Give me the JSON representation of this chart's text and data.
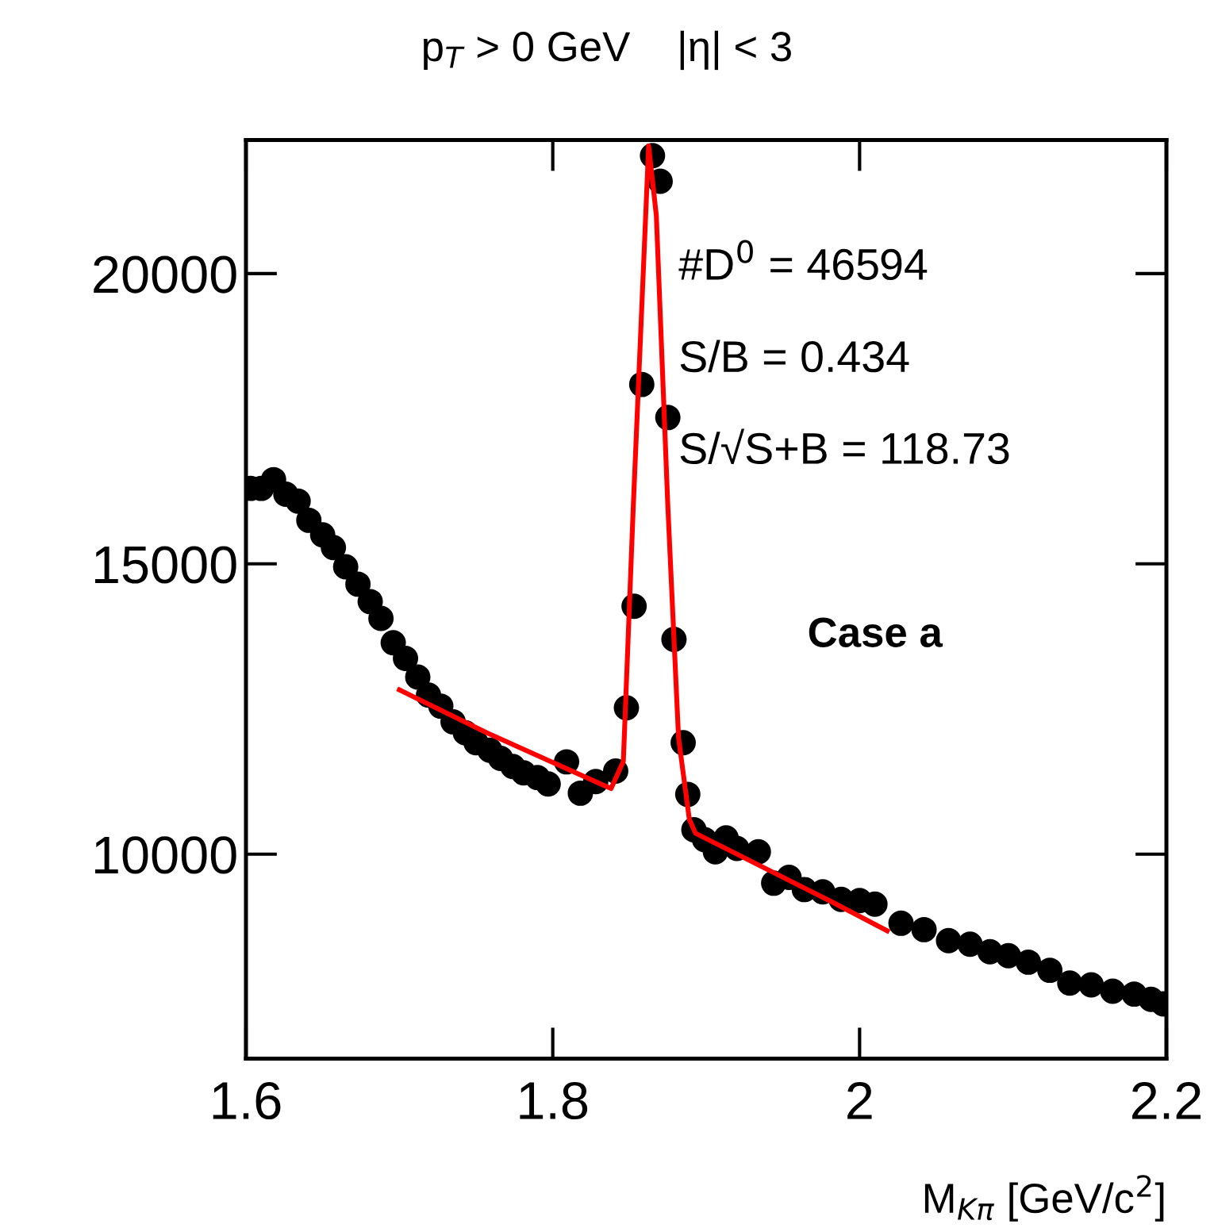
{
  "chart_data": {
    "type": "scatter",
    "title": "p$_{T}$ > 0 GeV    |η| < 3",
    "xlabel": "M$_{Kπ}$ [GeV/c$^{2}$]",
    "annotations": [
      "#D$^{0}$ = 46594",
      "S/B = 0.434",
      "S/√S+B = 118.73",
      "Case a"
    ],
    "xlim": [
      1.6,
      2.2
    ],
    "xticks": [
      {
        "value": 1.6,
        "label": "1.6"
      },
      {
        "value": 1.8,
        "label": "1.8"
      },
      {
        "value": 2.0,
        "label": "2"
      },
      {
        "value": 2.2,
        "label": "2.2"
      }
    ],
    "ylim": [
      6480,
      22300
    ],
    "yticks": [
      10000,
      15000,
      20000
    ],
    "grid": false,
    "legend": false,
    "series": [
      {
        "color": "#000000",
        "marker": "circle",
        "x": [
          1.603,
          1.61,
          1.618,
          1.626,
          1.634,
          1.641,
          1.65,
          1.657,
          1.665,
          1.673,
          1.681,
          1.688,
          1.696,
          1.704,
          1.712,
          1.719,
          1.727,
          1.735,
          1.743,
          1.75,
          1.759,
          1.766,
          1.774,
          1.781,
          1.79,
          1.797,
          1.809,
          1.818,
          1.828,
          1.841,
          1.848,
          1.853,
          1.858,
          1.865,
          1.87,
          1.875,
          1.879,
          1.885,
          1.888,
          1.892,
          1.899,
          1.906,
          1.913,
          1.92,
          1.934,
          1.944,
          1.954,
          1.964,
          1.976,
          1.988,
          2.0,
          2.01,
          2.027,
          2.042,
          2.058,
          2.072,
          2.085,
          2.097,
          2.11,
          2.124,
          2.137,
          2.151,
          2.165,
          2.179,
          2.19,
          2.198
        ],
        "values": [
          16300,
          16300,
          16450,
          16200,
          16080,
          15750,
          15500,
          15280,
          14950,
          14650,
          14350,
          14060,
          13640,
          13370,
          13050,
          12740,
          12550,
          12280,
          12090,
          11920,
          11790,
          11650,
          11510,
          11400,
          11320,
          11210,
          11590,
          11050,
          11250,
          11430,
          12520,
          14270,
          18090,
          22030,
          21590,
          17520,
          13700,
          11920,
          11030,
          10420,
          10250,
          10040,
          10280,
          10100,
          10040,
          9500,
          9600,
          9390,
          9350,
          9220,
          9200,
          9140,
          8810,
          8700,
          8510,
          8450,
          8320,
          8250,
          8140,
          8000,
          7780,
          7750,
          7640,
          7590,
          7500,
          7420
        ]
      },
      {
        "type": "line",
        "color": "#ff0000",
        "marker": "none",
        "line_style": "solid",
        "x": [
          1.7,
          1.757,
          1.838,
          1.846,
          1.8525,
          1.8625,
          1.8675,
          1.875,
          1.882,
          1.889,
          1.893,
          1.981,
          2.018
        ],
        "values": [
          12830,
          12090,
          11130,
          11600,
          16000,
          22200,
          21000,
          16000,
          12000,
          10600,
          10360,
          9190,
          8680
        ]
      }
    ]
  }
}
